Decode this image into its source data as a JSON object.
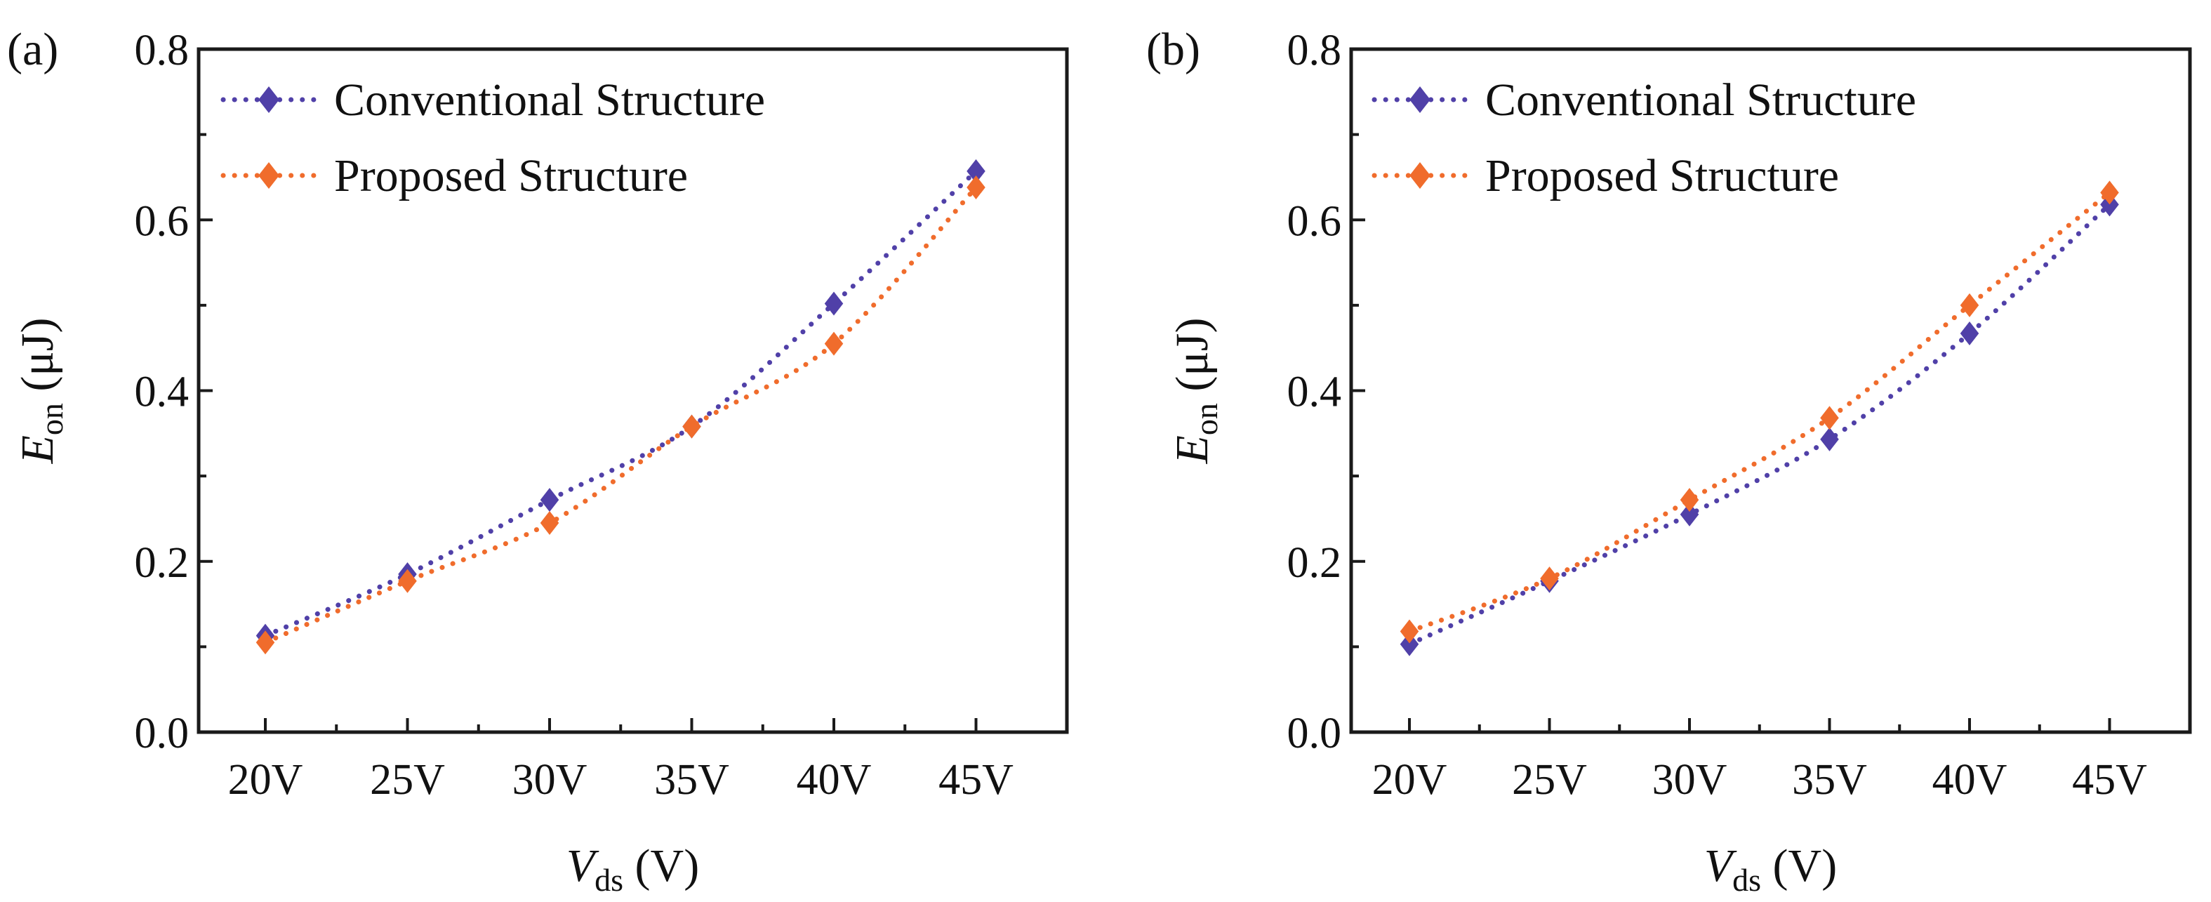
{
  "figure": {
    "panels": [
      "(a)",
      "(b)"
    ]
  },
  "colors": {
    "conventional": "#5040a8",
    "proposed": "#f06c2c",
    "axis": "#1a1a1a"
  },
  "chart_data": [
    {
      "type": "line",
      "panel_label": "(a)",
      "title": "",
      "xlabel": "V_ds (V)",
      "xlabel_main": "V",
      "xlabel_sub": "ds",
      "xlabel_unit": " (V)",
      "ylabel": "E_on (μJ)",
      "ylabel_main": "E",
      "ylabel_sub": "on",
      "ylabel_unit": " (μJ)",
      "categories": [
        "20V",
        "25V",
        "30V",
        "35V",
        "40V",
        "45V"
      ],
      "ylim": [
        0.0,
        0.8
      ],
      "yticks": [
        "0.0",
        "0.2",
        "0.4",
        "0.6",
        "0.8"
      ],
      "grid": false,
      "legend_position": "top-left",
      "series": [
        {
          "name": "Conventional Structure",
          "marker": "diamond",
          "line": "dotted",
          "color_key": "conventional",
          "values": [
            0.113,
            0.185,
            0.272,
            0.358,
            0.502,
            0.657
          ]
        },
        {
          "name": "Proposed Structure",
          "marker": "diamond",
          "line": "dotted",
          "color_key": "proposed",
          "values": [
            0.105,
            0.177,
            0.245,
            0.358,
            0.455,
            0.638
          ]
        }
      ]
    },
    {
      "type": "line",
      "panel_label": "(b)",
      "title": "",
      "xlabel": "V_ds (V)",
      "xlabel_main": "V",
      "xlabel_sub": "ds",
      "xlabel_unit": " (V)",
      "ylabel": "E_on (μJ)",
      "ylabel_main": "E",
      "ylabel_sub": "on",
      "ylabel_unit": " (μJ)",
      "categories": [
        "20V",
        "25V",
        "30V",
        "35V",
        "40V",
        "45V"
      ],
      "ylim": [
        0.0,
        0.8
      ],
      "yticks": [
        "0.0",
        "0.2",
        "0.4",
        "0.6",
        "0.8"
      ],
      "grid": false,
      "legend_position": "top-left",
      "series": [
        {
          "name": "Conventional Structure",
          "marker": "diamond",
          "line": "dotted",
          "color_key": "conventional",
          "values": [
            0.103,
            0.177,
            0.255,
            0.343,
            0.467,
            0.618
          ]
        },
        {
          "name": "Proposed Structure",
          "marker": "diamond",
          "line": "dotted",
          "color_key": "proposed",
          "values": [
            0.118,
            0.18,
            0.272,
            0.368,
            0.5,
            0.632
          ]
        }
      ]
    }
  ]
}
